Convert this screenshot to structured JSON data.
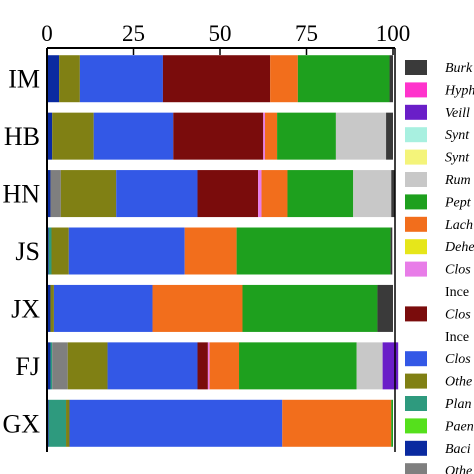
{
  "chart_data": {
    "type": "bar",
    "stacked": true,
    "orientation": "horizontal",
    "title": "",
    "xlabel": "",
    "ylabel": "",
    "xlim": [
      0,
      100
    ],
    "xticks": [
      "0",
      "25",
      "50",
      "75",
      "100"
    ],
    "grid": false,
    "legend_position": "right",
    "categories": [
      "IM",
      "HB",
      "HN",
      "JS",
      "JX",
      "FJ",
      "GX"
    ],
    "series": [
      {
        "name": "Baci",
        "color": "#0a2aa0",
        "values": [
          3.5,
          1.5,
          1.0,
          0.5,
          1.0,
          1.0,
          0.5
        ]
      },
      {
        "name": "Plan",
        "color": "#2e9a7e",
        "values": [
          0,
          0,
          0,
          0.8,
          0,
          0.5,
          5.0
        ]
      },
      {
        "name": "",
        "color": "#7f7f7f",
        "values": [
          0,
          0,
          3.0,
          0,
          0,
          4.5,
          0
        ]
      },
      {
        "name": "Othe",
        "color": "#808014",
        "values": [
          6.0,
          12.0,
          16.0,
          5.0,
          1.0,
          11.5,
          1.0
        ]
      },
      {
        "name": "Clos",
        "color": "#3358e6",
        "values": [
          24.0,
          23.0,
          23.5,
          33.5,
          28.5,
          26.0,
          61.5
        ]
      },
      {
        "name": "Clos",
        "color": "#7a0c0c",
        "values": [
          31.0,
          26.0,
          17.5,
          0,
          0,
          3.0,
          0
        ]
      },
      {
        "name": "Clos",
        "color": "#e87de8",
        "values": [
          0,
          0.5,
          1.0,
          0,
          0,
          0.5,
          0
        ]
      },
      {
        "name": "Lach",
        "color": "#f26e1c",
        "values": [
          8.0,
          3.5,
          7.5,
          15.0,
          26.0,
          8.5,
          31.5
        ]
      },
      {
        "name": "Pept",
        "color": "#1ea01e",
        "values": [
          26.5,
          17.0,
          19.0,
          44.5,
          39.0,
          34.0,
          0.5
        ]
      },
      {
        "name": "Rum",
        "color": "#c8c8c8",
        "values": [
          0,
          14.5,
          11.0,
          0,
          0,
          7.5,
          0
        ]
      },
      {
        "name": "Veil",
        "color": "#6a1ec8",
        "values": [
          0,
          0,
          0,
          0,
          0,
          4.5,
          0
        ]
      },
      {
        "name": "Burk",
        "color": "#3a3a3a",
        "values": [
          1.0,
          2.0,
          1.0,
          0.5,
          4.5,
          0,
          0
        ]
      }
    ],
    "legend": [
      {
        "label": "Burk",
        "color": "#3a3a3a"
      },
      {
        "label": "Hyph",
        "color": "#ff33cc"
      },
      {
        "label": "Veill",
        "color": "#6a1ec8"
      },
      {
        "label": "Synt",
        "color": "#a8f0e0"
      },
      {
        "label": "Synt",
        "color": "#f4f47a"
      },
      {
        "label": "Rum",
        "color": "#c8c8c8"
      },
      {
        "label": "Pept",
        "color": "#1ea01e"
      },
      {
        "label": "Lach",
        "color": "#f26e1c"
      },
      {
        "label": "Dehe",
        "color": "#e6e61a"
      },
      {
        "label": "Clos",
        "color": "#e87de8"
      },
      {
        "label": "Ince",
        "color": ""
      },
      {
        "label": "Clos",
        "color": "#7a0c0c"
      },
      {
        "label": "Ince",
        "color": ""
      },
      {
        "label": "Clos",
        "color": "#3358e6"
      },
      {
        "label": "Othe",
        "color": "#808014"
      },
      {
        "label": "Plan",
        "color": "#2e9a7e"
      },
      {
        "label": "Paen",
        "color": "#55e01c"
      },
      {
        "label": "Baci",
        "color": "#0a2aa0"
      },
      {
        "label": "Othe",
        "color": "#7f7f7f"
      }
    ]
  }
}
